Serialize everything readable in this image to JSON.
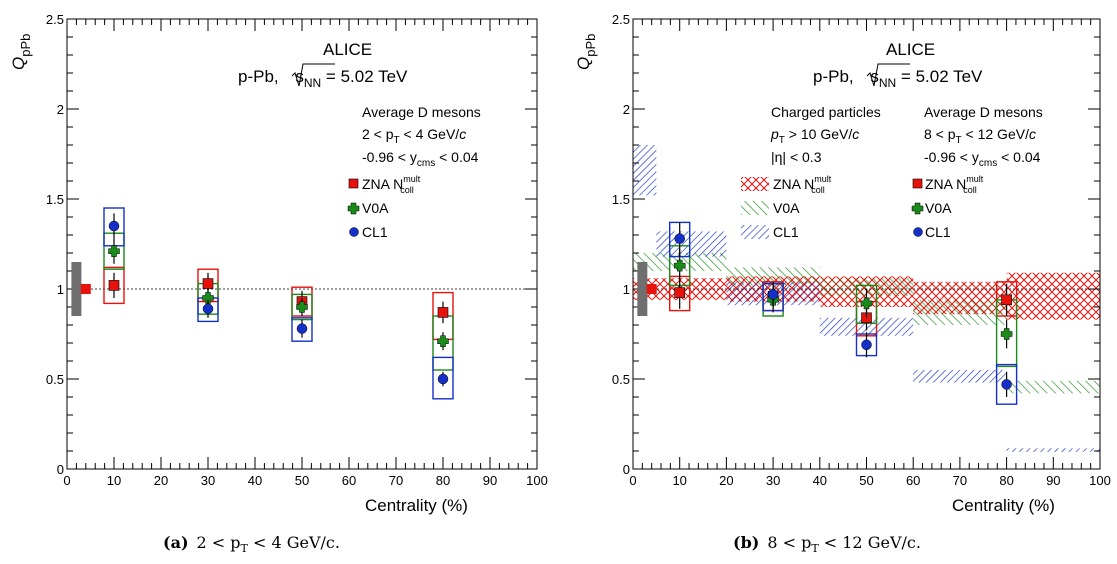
{
  "colors": {
    "zna": "#e8120c",
    "v0a": "#1a8a1a",
    "cl1": "#1530c8",
    "norm": "#6f6f6f"
  },
  "common": {
    "ylabel": "Q",
    "ylabel_sub": "pPb",
    "xlabel": "Centrality (%)",
    "experiment": "ALICE",
    "system_prefix": "p-Pb, ",
    "system_s": "s",
    "system_s_sub": "NN",
    "system_suffix": " = 5.02 TeV",
    "legend": {
      "zna": "ZNA N",
      "zna_sup": "mult",
      "zna_sub": "coll",
      "v0a": "V0A",
      "cl1": "CL1"
    }
  },
  "chart_data": [
    {
      "type": "scatter",
      "caption_tag": "(a)",
      "caption": "2 < p",
      "caption_sub": "T",
      "caption_suffix": " < 4 GeV/c.",
      "xlim": [
        0,
        100
      ],
      "ylim": [
        0,
        2.5
      ],
      "xticks": [
        "0",
        "10",
        "20",
        "30",
        "40",
        "50",
        "60",
        "70",
        "80",
        "90",
        "100"
      ],
      "yticks": [
        "0",
        "0.5",
        "1",
        "1.5",
        "2",
        "2.5"
      ],
      "reference_line": 1,
      "normalization_box": {
        "x": 2,
        "lo": 0.85,
        "hi": 1.15
      },
      "normalization_marker": {
        "x": 4,
        "y": 1.0
      },
      "meson_text": {
        "title": "Average D mesons",
        "pt_pre": "2 < p",
        "pt_sub": "T",
        "pt_post": " < 4 GeV/",
        "pt_unit": "c",
        "y_pre": "-0.96 < y",
        "y_sub": "cms",
        "y_post": " < 0.04"
      },
      "series": [
        {
          "key": "zna",
          "name": "ZNA N",
          "points": [
            {
              "x": 10,
              "y": 1.02,
              "err": 0.07,
              "syslo": 0.92,
              "syshi": 1.12
            },
            {
              "x": 30,
              "y": 1.03,
              "err": 0.06,
              "syslo": 0.93,
              "syshi": 1.11
            },
            {
              "x": 50,
              "y": 0.93,
              "err": 0.06,
              "syslo": 0.85,
              "syshi": 1.01
            },
            {
              "x": 80,
              "y": 0.87,
              "err": 0.06,
              "syslo": 0.72,
              "syshi": 0.98
            }
          ]
        },
        {
          "key": "v0a",
          "name": "V0A",
          "points": [
            {
              "x": 10,
              "y": 1.21,
              "err": 0.07,
              "syslo": 1.11,
              "syshi": 1.31
            },
            {
              "x": 30,
              "y": 0.95,
              "err": 0.05,
              "syslo": 0.86,
              "syshi": 1.03
            },
            {
              "x": 50,
              "y": 0.9,
              "err": 0.05,
              "syslo": 0.83,
              "syshi": 0.97
            },
            {
              "x": 80,
              "y": 0.71,
              "err": 0.05,
              "syslo": 0.55,
              "syshi": 0.85
            }
          ]
        },
        {
          "key": "cl1",
          "name": "CL1",
          "points": [
            {
              "x": 10,
              "y": 1.35,
              "err": 0.07,
              "syslo": 1.24,
              "syshi": 1.45
            },
            {
              "x": 30,
              "y": 0.89,
              "err": 0.05,
              "syslo": 0.82,
              "syshi": 0.95
            },
            {
              "x": 50,
              "y": 0.78,
              "err": 0.05,
              "syslo": 0.71,
              "syshi": 0.84
            },
            {
              "x": 80,
              "y": 0.5,
              "err": 0.04,
              "syslo": 0.39,
              "syshi": 0.62
            }
          ]
        }
      ]
    },
    {
      "type": "scatter",
      "caption_tag": "(b)",
      "caption": "8 < p",
      "caption_sub": "T",
      "caption_suffix": " < 12 GeV/c.",
      "xlim": [
        0,
        100
      ],
      "ylim": [
        0,
        2.5
      ],
      "xticks": [
        "0",
        "10",
        "20",
        "30",
        "40",
        "50",
        "60",
        "70",
        "80",
        "90",
        "100"
      ],
      "yticks": [
        "0",
        "0.5",
        "1",
        "1.5",
        "2",
        "2.5"
      ],
      "reference_line": 1,
      "normalization_box": {
        "x": 2,
        "lo": 0.85,
        "hi": 1.15
      },
      "normalization_marker": {
        "x": 4,
        "y": 1.0
      },
      "meson_text": {
        "title": "Average D mesons",
        "pt_pre": "8 < p",
        "pt_sub": "T",
        "pt_post": " < 12 GeV/",
        "pt_unit": "c",
        "y_pre": "-0.96 < y",
        "y_sub": "cms",
        "y_post": " < 0.04"
      },
      "charged_text": {
        "title": "Charged particles",
        "pt_pre": "p",
        "pt_sub": "T",
        "pt_post": " > 10 GeV/",
        "pt_unit": "c",
        "eta": "|η| < 0.3"
      },
      "charged_bands": [
        {
          "key": "zna",
          "name": "ZNA N",
          "bins": [
            {
              "x0": 0,
              "x1": 20,
              "lo": 0.94,
              "hi": 1.06
            },
            {
              "x0": 20,
              "x1": 40,
              "lo": 0.93,
              "hi": 1.07
            },
            {
              "x0": 40,
              "x1": 60,
              "lo": 0.9,
              "hi": 1.07
            },
            {
              "x0": 60,
              "x1": 80,
              "lo": 0.86,
              "hi": 1.04
            },
            {
              "x0": 80,
              "x1": 100,
              "lo": 0.83,
              "hi": 1.09
            }
          ]
        },
        {
          "key": "v0a",
          "name": "V0A",
          "bins": [
            {
              "x0": 0,
              "x1": 20,
              "lo": 1.1,
              "hi": 1.2
            },
            {
              "x0": 20,
              "x1": 40,
              "lo": 1.02,
              "hi": 1.12
            },
            {
              "x0": 40,
              "x1": 60,
              "lo": 0.96,
              "hi": 1.06
            },
            {
              "x0": 60,
              "x1": 80,
              "lo": 0.8,
              "hi": 0.94
            },
            {
              "x0": 80,
              "x1": 100,
              "lo": 0.42,
              "hi": 0.49
            }
          ]
        },
        {
          "key": "cl1",
          "name": "CL1",
          "bins": [
            {
              "x0": 0,
              "x1": 5,
              "lo": 1.52,
              "hi": 1.8
            },
            {
              "x0": 5,
              "x1": 20,
              "lo": 1.18,
              "hi": 1.32
            },
            {
              "x0": 20,
              "x1": 40,
              "lo": 0.91,
              "hi": 1.04
            },
            {
              "x0": 40,
              "x1": 60,
              "lo": 0.74,
              "hi": 0.84
            },
            {
              "x0": 60,
              "x1": 80,
              "lo": 0.48,
              "hi": 0.55
            },
            {
              "x0": 80,
              "x1": 100,
              "lo": 0.095,
              "hi": 0.115
            }
          ]
        }
      ],
      "series": [
        {
          "key": "zna",
          "name": "ZNA N",
          "points": [
            {
              "x": 10,
              "y": 0.98,
              "err": 0.09,
              "syslo": 0.88,
              "syshi": 1.07
            },
            {
              "x": 30,
              "y": 0.96,
              "err": 0.07,
              "syslo": 0.88,
              "syshi": 1.04
            },
            {
              "x": 50,
              "y": 0.84,
              "err": 0.07,
              "syslo": 0.74,
              "syshi": 0.93
            },
            {
              "x": 80,
              "y": 0.94,
              "err": 0.09,
              "syslo": 0.85,
              "syshi": 1.04
            }
          ]
        },
        {
          "key": "v0a",
          "name": "V0A",
          "points": [
            {
              "x": 10,
              "y": 1.13,
              "err": 0.09,
              "syslo": 1.02,
              "syshi": 1.24
            },
            {
              "x": 30,
              "y": 0.94,
              "err": 0.07,
              "syslo": 0.85,
              "syshi": 1.03
            },
            {
              "x": 50,
              "y": 0.92,
              "err": 0.08,
              "syslo": 0.81,
              "syshi": 1.02
            },
            {
              "x": 80,
              "y": 0.75,
              "err": 0.08,
              "syslo": 0.57,
              "syshi": 0.94
            }
          ]
        },
        {
          "key": "cl1",
          "name": "CL1",
          "points": [
            {
              "x": 10,
              "y": 1.28,
              "err": 0.09,
              "syslo": 1.18,
              "syshi": 1.37
            },
            {
              "x": 30,
              "y": 0.97,
              "err": 0.07,
              "syslo": 0.88,
              "syshi": 1.03
            },
            {
              "x": 50,
              "y": 0.69,
              "err": 0.07,
              "syslo": 0.63,
              "syshi": 0.75
            },
            {
              "x": 80,
              "y": 0.47,
              "err": 0.07,
              "syslo": 0.36,
              "syshi": 0.58
            }
          ]
        }
      ]
    }
  ]
}
